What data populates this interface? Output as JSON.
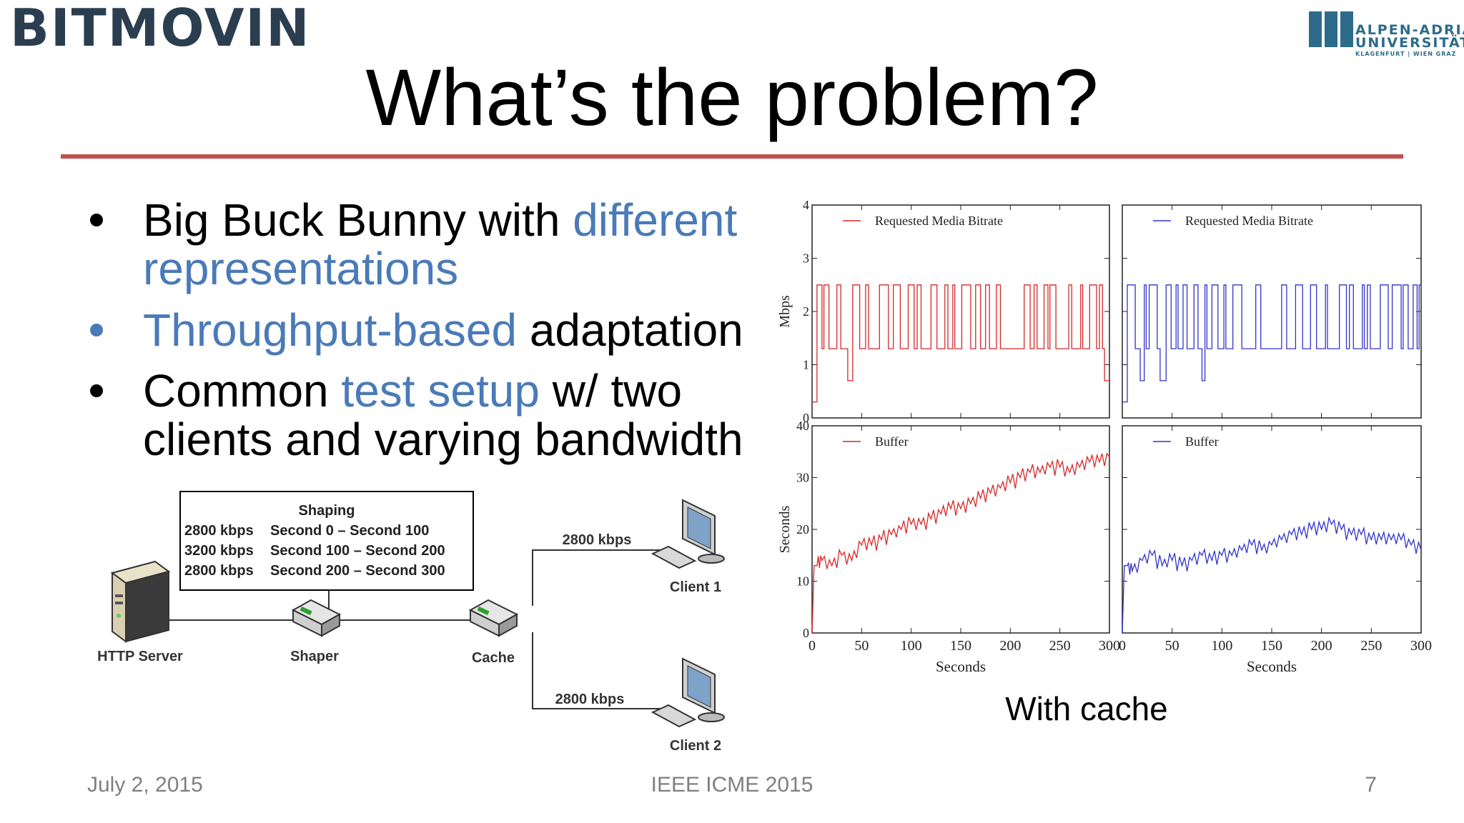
{
  "brand": {
    "company": "BITMOVIN",
    "university_line1": "ALPEN-ADRIA",
    "university_line2": "UNIVERSITÄT",
    "university_line3": "KLAGENFURT | WIEN GRAZ"
  },
  "title": "What’s the problem?",
  "bullets": [
    {
      "parts": [
        {
          "text": "Big Buck Bunny with ",
          "color": "#000000"
        },
        {
          "text": "different",
          "color": "#4a7ab8"
        }
      ],
      "line2": [
        {
          "text": "representations",
          "color": "#4a7ab8"
        }
      ]
    },
    {
      "parts": [
        {
          "text": "Throughput-based",
          "color": "#4a7ab8"
        },
        {
          "text": " adaptation",
          "color": "#000000"
        }
      ]
    },
    {
      "parts": [
        {
          "text": "Common ",
          "color": "#000000"
        },
        {
          "text": "test setup",
          "color": "#4a7ab8"
        },
        {
          "text": " w/ two",
          "color": "#000000"
        }
      ],
      "line2": [
        {
          "text": "clients and varying bandwidth",
          "color": "#000000"
        }
      ]
    }
  ],
  "diagram": {
    "shaping_title": "Shaping",
    "shaping_rows": [
      {
        "rate": "2800 kbps",
        "period": "Second 0 – Second 100"
      },
      {
        "rate": "3200 kbps",
        "period": "Second 100 – Second 200"
      },
      {
        "rate": "2800 kbps",
        "period": "Second 200 – Second 300"
      }
    ],
    "http_server": "HTTP Server",
    "shaper": "Shaper",
    "cache": "Cache",
    "client1": "Client 1",
    "client2": "Client 2",
    "link1": "2800 kbps",
    "link2": "2800 kbps"
  },
  "chart_data": [
    {
      "type": "line",
      "series": [
        {
          "name": "Requested Media Bitrate",
          "color": "#d62728"
        }
      ],
      "ylabel": "Mbps",
      "ylim": [
        0,
        4
      ],
      "yticks": [
        0,
        1,
        2,
        3,
        4
      ],
      "xlim": [
        0,
        300
      ],
      "levels_mbps": [
        0.3,
        1.3,
        2.5
      ]
    },
    {
      "type": "line",
      "series": [
        {
          "name": "Requested Media Bitrate",
          "color": "#3333cc"
        }
      ],
      "ylim": [
        0,
        4
      ],
      "xlim": [
        0,
        300
      ],
      "levels_mbps": [
        0.3,
        1.3,
        2.5
      ]
    },
    {
      "type": "line",
      "series": [
        {
          "name": "Buffer",
          "color": "#d62728"
        }
      ],
      "ylabel": "Seconds",
      "xlabel": "Seconds",
      "ylim": [
        0,
        40
      ],
      "yticks": [
        0,
        10,
        20,
        30,
        40
      ],
      "xlim": [
        0,
        300
      ],
      "xticks": [
        0,
        50,
        100,
        150,
        200,
        250,
        300
      ],
      "x": [
        0,
        2,
        5,
        10,
        20,
        30,
        40,
        50,
        60,
        70,
        80,
        90,
        100,
        110,
        120,
        130,
        140,
        150,
        160,
        170,
        180,
        190,
        200,
        210,
        220,
        230,
        240,
        250,
        260,
        270,
        280,
        290,
        300
      ],
      "y": [
        0,
        13,
        13,
        14,
        13,
        15,
        14,
        17,
        17,
        18,
        19,
        20,
        21,
        21,
        22,
        23,
        24,
        24,
        25,
        26,
        27,
        28,
        29,
        30,
        31,
        31,
        32,
        32,
        31,
        32,
        33,
        33,
        34
      ]
    },
    {
      "type": "line",
      "series": [
        {
          "name": "Buffer",
          "color": "#3333cc"
        }
      ],
      "xlabel": "Seconds",
      "ylim": [
        0,
        40
      ],
      "xlim": [
        0,
        300
      ],
      "xticks": [
        0,
        50,
        100,
        150,
        200,
        250,
        300
      ],
      "x": [
        0,
        2,
        5,
        10,
        20,
        30,
        40,
        50,
        60,
        70,
        80,
        90,
        100,
        110,
        120,
        130,
        140,
        150,
        160,
        170,
        180,
        190,
        200,
        210,
        220,
        230,
        240,
        250,
        260,
        270,
        280,
        290,
        300
      ],
      "y": [
        0,
        13,
        13,
        12,
        14,
        15,
        13,
        14,
        13,
        14,
        15,
        14,
        15,
        15,
        16,
        17,
        16,
        17,
        18,
        19,
        19,
        20,
        20,
        21,
        20,
        19,
        19,
        18,
        18,
        18,
        18,
        17,
        16
      ]
    }
  ],
  "caption": "With cache",
  "footer": {
    "date": "July 2, 2015",
    "conference": "IEEE ICME  2015",
    "page": "7"
  }
}
